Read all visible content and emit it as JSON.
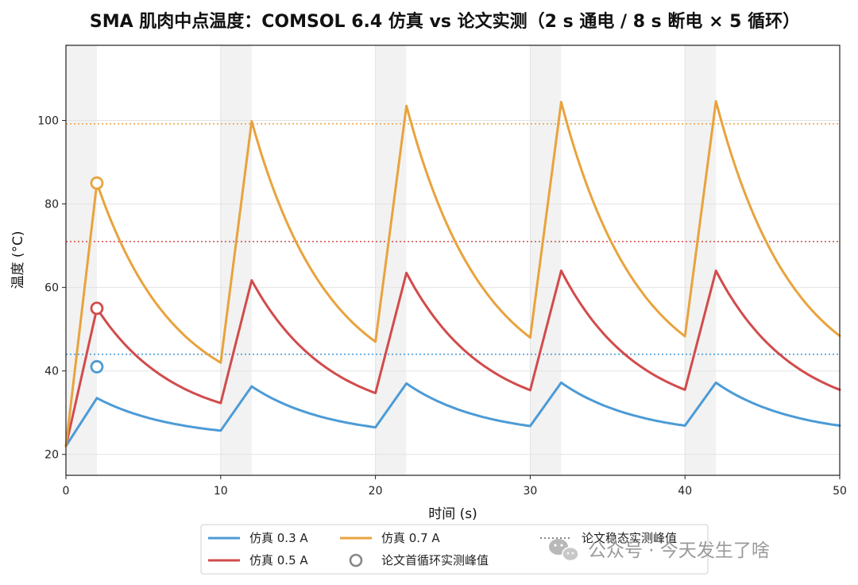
{
  "chart_data": {
    "type": "line",
    "title": "SMA 肌肉中点温度：COMSOL 6.4 仿真 vs 论文实测（2 s 通电 / 8 s 断电 × 5 循环）",
    "xlabel": "时间 (s)",
    "ylabel": "温度 (°C)",
    "xlim": [
      0,
      50
    ],
    "ylim": [
      15,
      118
    ],
    "xticks": [
      0,
      10,
      20,
      30,
      40,
      50
    ],
    "yticks": [
      20,
      40,
      60,
      80,
      100
    ],
    "grid": true,
    "shaded_intervals": [
      [
        0,
        2
      ],
      [
        10,
        12
      ],
      [
        20,
        22
      ],
      [
        30,
        32
      ],
      [
        40,
        42
      ]
    ],
    "series": [
      {
        "name": "仿真 0.3 A",
        "color": "#4c9bd6",
        "x": [
          0,
          2,
          10,
          12,
          20,
          22,
          30,
          32,
          40,
          42,
          50
        ],
        "y": [
          22,
          33.5,
          25.7,
          36.3,
          26.5,
          37,
          26.8,
          37.2,
          26.9,
          37.2,
          26.9
        ]
      },
      {
        "name": "仿真 0.5 A",
        "color": "#d24b4b",
        "x": [
          0,
          2,
          10,
          12,
          20,
          22,
          30,
          32,
          40,
          42,
          50
        ],
        "y": [
          22,
          55,
          32.3,
          61.7,
          34.7,
          63.5,
          35.4,
          64,
          35.5,
          64,
          35.5
        ]
      },
      {
        "name": "仿真 0.7 A",
        "color": "#e8a33d",
        "x": [
          0,
          2,
          10,
          12,
          20,
          22,
          30,
          32,
          40,
          42,
          50
        ],
        "y": [
          22,
          85,
          42,
          99.8,
          47,
          103.5,
          48,
          104.4,
          48.3,
          104.6,
          48.4
        ]
      }
    ],
    "measured_peaks": [
      {
        "x": 2,
        "y": 41,
        "color": "#4c9bd6"
      },
      {
        "x": 2,
        "y": 55,
        "color": "#d24b4b"
      },
      {
        "x": 2,
        "y": 85,
        "color": "#e8a33d"
      }
    ],
    "steady_peak_lines": [
      {
        "y": 44,
        "color": "#4c9bd6"
      },
      {
        "y": 71,
        "color": "#d24b4b"
      },
      {
        "y": 99.2,
        "color": "#e8a33d"
      }
    ],
    "legend": {
      "placement": "bottom-center",
      "entries": [
        {
          "label": "仿真 0.3 A",
          "kind": "line",
          "color": "#4c9bd6"
        },
        {
          "label": "仿真 0.5 A",
          "kind": "line",
          "color": "#d24b4b"
        },
        {
          "label": "仿真 0.7 A",
          "kind": "line",
          "color": "#e8a33d"
        },
        {
          "label": "论文首循环实测峰值",
          "kind": "circle",
          "color": "#888888"
        },
        {
          "label": "论文稳态实测峰值",
          "kind": "dotted",
          "color": "#888888"
        }
      ]
    }
  },
  "watermark": {
    "icon": "wechat-icon",
    "text": "公众号 · 今天发生了啥"
  }
}
